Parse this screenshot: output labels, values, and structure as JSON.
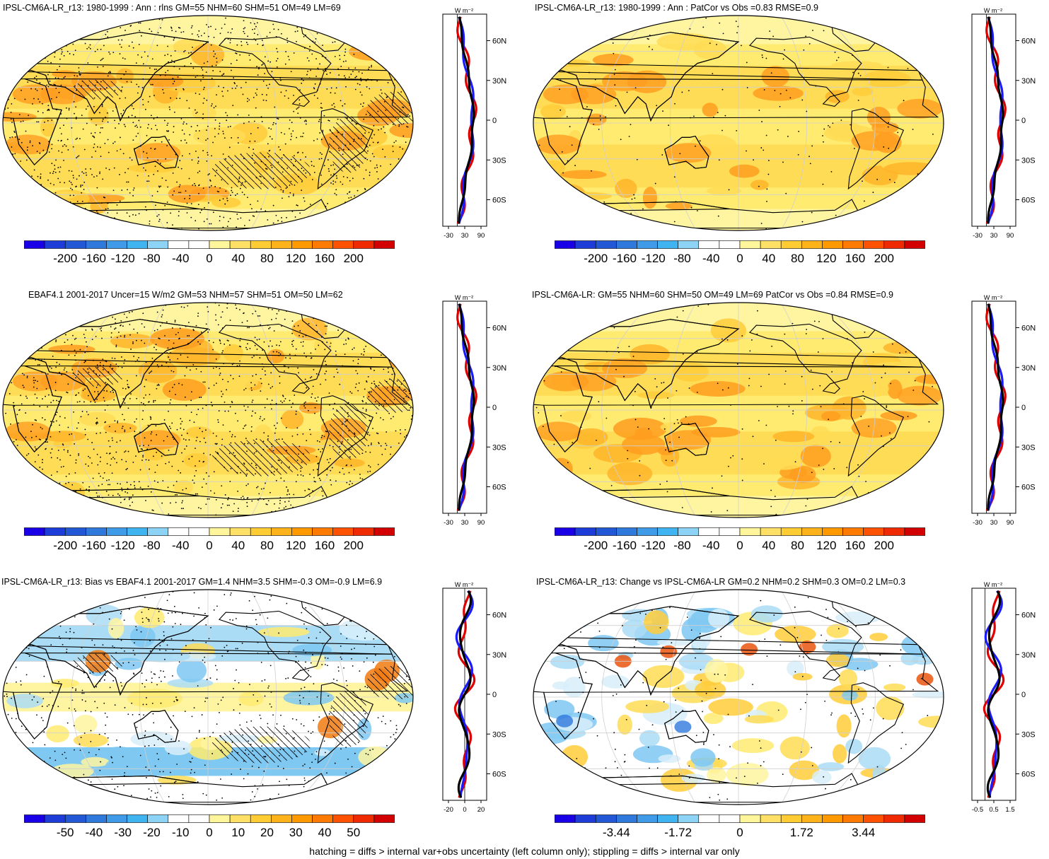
{
  "panels": [
    {
      "id": "p1",
      "title": "IPSL-CM6A-LR_r13: 1980-1999 : Ann : rlns GM=55 NHM=60 SHM=51 OM=49 LM=69",
      "palette": "warm",
      "hatch": true,
      "stipple": "dense",
      "scale": "abs"
    },
    {
      "id": "p2",
      "title": "IPSL-CM6A-LR_r13: 1980-1999 : Ann : PatCor vs Obs =0.83 RMSE=0.9",
      "palette": "warm",
      "hatch": false,
      "stipple": "sparse",
      "scale": "abs"
    },
    {
      "id": "p3",
      "title": "EBAF4.1 2001-2017 Uncer=15 W/m2 GM=53 NHM=57 SHM=51 OM=50 LM=62",
      "palette": "warm",
      "hatch": true,
      "stipple": "dense",
      "scale": "abs"
    },
    {
      "id": "p4",
      "title": "IPSL-CM6A-LR: GM=55 NHM=60 SHM=50 OM=49 LM=69 PatCor vs Obs =0.84 RMSE=0.9",
      "palette": "warm",
      "hatch": false,
      "stipple": "sparse",
      "scale": "abs"
    },
    {
      "id": "p5",
      "title": "IPSL-CM6A-LR_r13: Bias vs EBAF4.1 2001-2017 GM=1.4 NHM=3.5 SHM=-0.3 OM=-0.9 LM=6.9",
      "palette": "diverging",
      "hatch": true,
      "stipple": "medium",
      "scale": "bias"
    },
    {
      "id": "p6",
      "title": "IPSL-CM6A-LR_r13: Change vs IPSL-CM6A-LR GM=0.2 NHM=0.2 SHM=0.3 OM=0.2 LM=0.3",
      "palette": "diverging",
      "hatch": false,
      "stipple": "sparse",
      "scale": "change"
    }
  ],
  "colorbars": {
    "abs": [
      "-200",
      "-160",
      "-120",
      "-80",
      "-40",
      "0",
      "40",
      "80",
      "120",
      "160",
      "200"
    ],
    "bias": [
      "-50",
      "-40",
      "-30",
      "-20",
      "-10",
      "0",
      "10",
      "20",
      "30",
      "40",
      "50"
    ],
    "change": [
      "-3.44",
      "-1.72",
      "0",
      "1.72",
      "3.44"
    ]
  },
  "colorbar_colors": [
    "#1a00e6",
    "#1e3cd8",
    "#2257d5",
    "#2f78dc",
    "#3f9be8",
    "#40b4f0",
    "#8dd3f5",
    "#ffffff",
    "#ffffff",
    "#fff59a",
    "#ffe066",
    "#ffcc33",
    "#ffb21a",
    "#ff9900",
    "#ff7a00",
    "#ff5200",
    "#f02a00",
    "#d20000"
  ],
  "zonal": {
    "unit": "W m⁻²",
    "lat_labels": [
      "60N",
      "30N",
      "0",
      "30S",
      "60S"
    ],
    "x_abs": [
      "-30",
      "30",
      "90"
    ],
    "x_bias": [
      "-20",
      "0",
      "20"
    ],
    "x_change": [
      "-0.5",
      "0.5",
      "1.5"
    ]
  },
  "footer": "hatching = diffs > internal var+obs uncertainty (left column only); stippling = diffs > internal var only"
}
